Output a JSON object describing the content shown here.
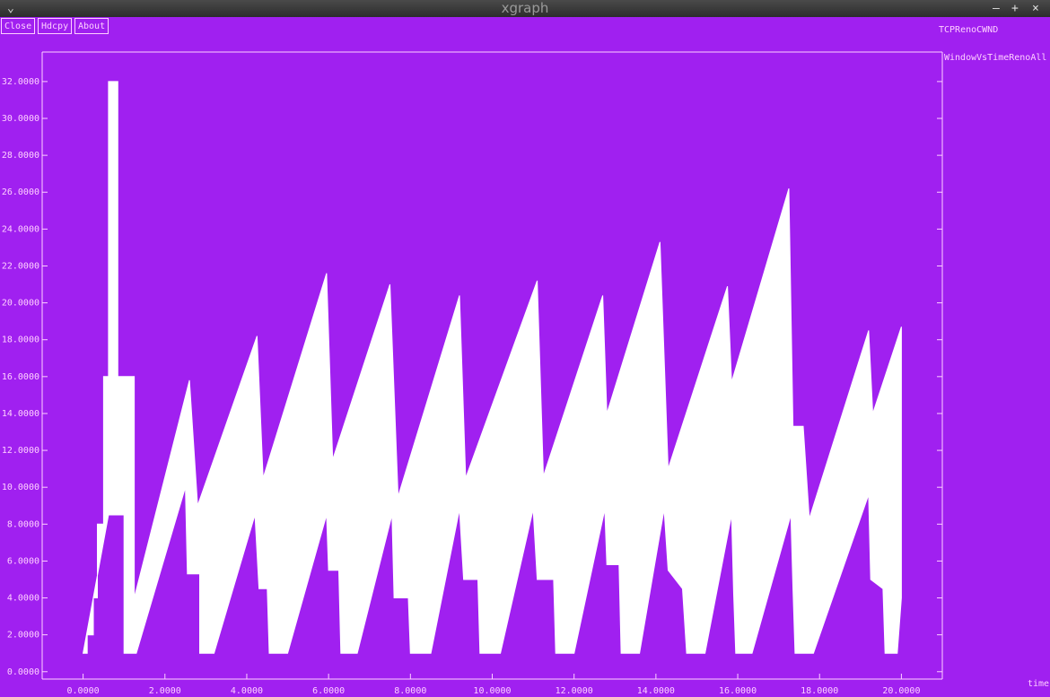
{
  "window": {
    "title": "xgraph",
    "buttons": [
      "Close",
      "Hdcpy",
      "About"
    ]
  },
  "chart_data": {
    "type": "area",
    "y_label": "TCPRenoCWND",
    "x_label": "time",
    "xlim": [
      -1,
      21
    ],
    "ylim": [
      -0.4,
      33.6
    ],
    "xticks": [
      {
        "value": 0,
        "label": "0.0000"
      },
      {
        "value": 2,
        "label": "2.0000"
      },
      {
        "value": 4,
        "label": "4.0000"
      },
      {
        "value": 6,
        "label": "6.0000"
      },
      {
        "value": 8,
        "label": "8.0000"
      },
      {
        "value": 10,
        "label": "10.0000"
      },
      {
        "value": 12,
        "label": "12.0000"
      },
      {
        "value": 14,
        "label": "14.0000"
      },
      {
        "value": 16,
        "label": "16.0000"
      },
      {
        "value": 18,
        "label": "18.0000"
      },
      {
        "value": 20,
        "label": "20.0000"
      }
    ],
    "yticks": [
      {
        "value": 0,
        "label": "0.0000"
      },
      {
        "value": 2,
        "label": "2.0000"
      },
      {
        "value": 4,
        "label": "4.0000"
      },
      {
        "value": 6,
        "label": "6.0000"
      },
      {
        "value": 8,
        "label": "8.0000"
      },
      {
        "value": 10,
        "label": "10.0000"
      },
      {
        "value": 12,
        "label": "12.0000"
      },
      {
        "value": 14,
        "label": "14.0000"
      },
      {
        "value": 16,
        "label": "16.0000"
      },
      {
        "value": 18,
        "label": "18.0000"
      },
      {
        "value": 20,
        "label": "20.0000"
      },
      {
        "value": 22,
        "label": "22.0000"
      },
      {
        "value": 24,
        "label": "24.0000"
      },
      {
        "value": 26,
        "label": "26.0000"
      },
      {
        "value": 28,
        "label": "28.0000"
      },
      {
        "value": 30,
        "label": "30.0000"
      },
      {
        "value": 32,
        "label": "32.0000"
      }
    ],
    "series": [
      {
        "name": "WindowVsTimeRenoAll",
        "color": "#ffffff",
        "x": [
          0,
          0.1,
          0.1,
          0.25,
          0.25,
          0.35,
          0.35,
          0.5,
          0.5,
          0.62,
          0.62,
          0.85,
          0.85,
          1.25,
          1.25,
          2.6,
          2.8,
          4.25,
          4.4,
          5.95,
          6.1,
          7.5,
          7.7,
          9.2,
          9.35,
          11.1,
          11.25,
          12.7,
          12.8,
          14.1,
          14.3,
          15.75,
          15.85,
          17.25,
          17.35,
          17.6,
          17.75,
          19.2,
          19.3,
          20.0,
          20.0,
          19.9,
          19.6,
          19.55,
          19.25,
          19.2,
          17.85,
          17.4,
          17.35,
          17.3,
          16.35,
          15.95,
          15.9,
          15.85,
          15.2,
          14.75,
          14.65,
          14.3,
          14.2,
          13.6,
          13.15,
          13.1,
          12.8,
          12.75,
          12.0,
          11.55,
          11.5,
          11.1,
          11.0,
          10.2,
          9.7,
          9.65,
          9.3,
          9.2,
          8.5,
          8.0,
          7.95,
          7.6,
          7.55,
          6.7,
          6.3,
          6.25,
          6.0,
          5.95,
          5.0,
          4.55,
          4.5,
          4.3,
          4.2,
          3.2,
          2.85,
          2.85,
          2.55,
          2.5,
          1.3,
          1.0,
          1.0,
          0.62
        ],
        "values": [
          1,
          1,
          2,
          2,
          4,
          4,
          8,
          8,
          16,
          16,
          32,
          32,
          16,
          16,
          4,
          15.8,
          9,
          18.2,
          10.5,
          21.6,
          11.5,
          21,
          9.5,
          20.4,
          10.5,
          21.2,
          10.6,
          20.4,
          14,
          23.3,
          11,
          20.9,
          15.7,
          26.2,
          13.3,
          13.3,
          8.3,
          18.5,
          14,
          18.7,
          4,
          1,
          1,
          4.5,
          5,
          9.6,
          1,
          1,
          4.5,
          8.5,
          1,
          1,
          4.2,
          8.5,
          1,
          1,
          4.5,
          5.5,
          8.8,
          1,
          1,
          5.8,
          5.8,
          8.8,
          1,
          1,
          5,
          5,
          8.8,
          1,
          1,
          5,
          5,
          8.8,
          1,
          1,
          4,
          4,
          8.5,
          1,
          1,
          5.5,
          5.5,
          8.5,
          1,
          1,
          4.5,
          4.5,
          8.5,
          1,
          1,
          5.3,
          5.3,
          10,
          1,
          1,
          8.5,
          8.5
        ]
      }
    ]
  }
}
